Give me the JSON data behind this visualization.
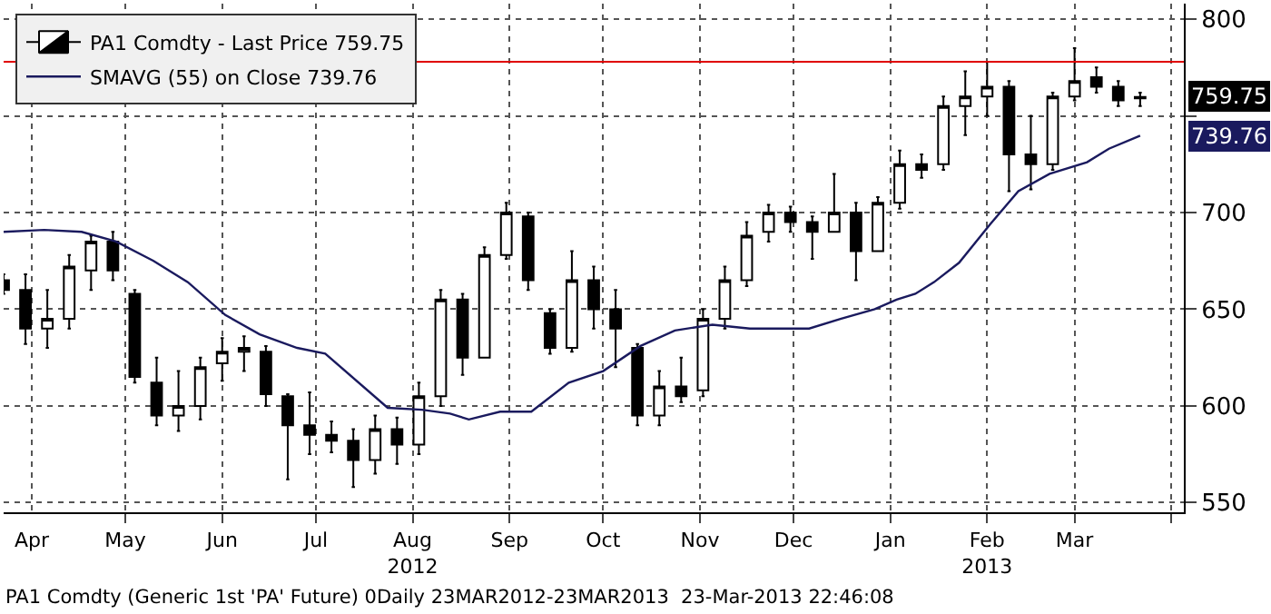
{
  "chart_data": {
    "type": "candlestick",
    "series": [
      {
        "name": "PA1 Comdty - Last Price 759.75",
        "color": "#000000",
        "x": [
          "2012-03-23",
          "2012-03-30",
          "2012-04-06",
          "2012-04-13",
          "2012-04-20",
          "2012-04-27",
          "2012-05-04",
          "2012-05-11",
          "2012-05-18",
          "2012-05-25",
          "2012-06-01",
          "2012-06-08",
          "2012-06-15",
          "2012-06-22",
          "2012-06-29",
          "2012-07-06",
          "2012-07-13",
          "2012-07-20",
          "2012-07-27",
          "2012-08-03",
          "2012-08-10",
          "2012-08-17",
          "2012-08-24",
          "2012-08-31",
          "2012-09-07",
          "2012-09-14",
          "2012-09-21",
          "2012-09-28",
          "2012-10-05",
          "2012-10-12",
          "2012-10-19",
          "2012-10-26",
          "2012-11-02",
          "2012-11-09",
          "2012-11-16",
          "2012-11-23",
          "2012-11-30",
          "2012-12-07",
          "2012-12-14",
          "2012-12-21",
          "2012-12-28",
          "2013-01-04",
          "2013-01-11",
          "2013-01-18",
          "2013-01-25",
          "2013-02-01",
          "2013-02-08",
          "2013-02-15",
          "2013-02-22",
          "2013-03-01",
          "2013-03-08",
          "2013-03-15",
          "2013-03-22"
        ],
        "ohlc": [
          [
            665,
            668,
            658,
            660
          ],
          [
            660,
            668,
            632,
            640
          ],
          [
            640,
            660,
            630,
            645
          ],
          [
            645,
            678,
            640,
            672
          ],
          [
            670,
            688,
            660,
            685
          ],
          [
            685,
            690,
            665,
            670
          ],
          [
            658,
            660,
            612,
            615
          ],
          [
            612,
            625,
            590,
            595
          ],
          [
            595,
            618,
            587,
            600
          ],
          [
            600,
            625,
            593,
            620
          ],
          [
            622,
            635,
            613,
            628
          ],
          [
            628,
            636,
            618,
            630
          ],
          [
            628,
            631,
            600,
            606
          ],
          [
            605,
            606,
            562,
            590
          ],
          [
            590,
            607,
            575,
            585
          ],
          [
            585,
            592,
            576,
            582
          ],
          [
            582,
            588,
            558,
            572
          ],
          [
            572,
            595,
            565,
            588
          ],
          [
            588,
            594,
            570,
            580
          ],
          [
            580,
            612,
            575,
            605
          ],
          [
            605,
            660,
            600,
            655
          ],
          [
            655,
            658,
            616,
            625
          ],
          [
            625,
            682,
            625,
            678
          ],
          [
            678,
            705,
            676,
            700
          ],
          [
            698,
            700,
            660,
            665
          ],
          [
            648,
            650,
            627,
            630
          ],
          [
            630,
            680,
            628,
            665
          ],
          [
            665,
            672,
            640,
            650
          ],
          [
            650,
            660,
            620,
            640
          ],
          [
            630,
            632,
            590,
            595
          ],
          [
            595,
            618,
            590,
            610
          ],
          [
            610,
            625,
            602,
            605
          ],
          [
            608,
            650,
            605,
            645
          ],
          [
            645,
            672,
            640,
            665
          ],
          [
            665,
            695,
            662,
            688
          ],
          [
            690,
            704,
            685,
            700
          ],
          [
            700,
            703,
            690,
            695
          ],
          [
            695,
            698,
            676,
            690
          ],
          [
            690,
            720,
            690,
            700
          ],
          [
            700,
            705,
            665,
            680
          ],
          [
            680,
            708,
            680,
            705
          ],
          [
            705,
            732,
            702,
            725
          ],
          [
            725,
            730,
            718,
            722
          ],
          [
            725,
            760,
            722,
            755
          ],
          [
            755,
            773,
            740,
            760
          ],
          [
            760,
            778,
            750,
            765
          ],
          [
            765,
            768,
            711,
            730
          ],
          [
            730,
            750,
            712,
            725
          ],
          [
            725,
            762,
            722,
            760
          ],
          [
            760,
            785,
            758,
            768
          ],
          [
            770,
            775,
            762,
            765
          ],
          [
            765,
            768,
            755,
            758
          ],
          [
            759,
            762,
            755,
            759.75
          ]
        ]
      },
      {
        "name": "SMAVG (55) on Close 739.76",
        "type": "line",
        "color": "#1a1a5e",
        "x": [
          "2012-03-23",
          "2012-04-05",
          "2012-04-17",
          "2012-04-28",
          "2012-05-10",
          "2012-05-21",
          "2012-06-02",
          "2012-06-13",
          "2012-06-25",
          "2012-07-04",
          "2012-07-24",
          "2012-08-04",
          "2012-08-13",
          "2012-08-19",
          "2012-08-29",
          "2012-09-08",
          "2012-09-20",
          "2012-10-01",
          "2012-10-13",
          "2012-10-24",
          "2012-11-05",
          "2012-11-17",
          "2012-12-06",
          "2012-12-16",
          "2012-12-27",
          "2013-01-03",
          "2013-01-09",
          "2013-01-15",
          "2013-01-23",
          "2013-02-02",
          "2013-02-11",
          "2013-02-21",
          "2013-03-05",
          "2013-03-12",
          "2013-03-22"
        ],
        "values": [
          690,
          691,
          690,
          685,
          675,
          664,
          647,
          637,
          630,
          627,
          599,
          598,
          596,
          593,
          597,
          597,
          612,
          618,
          631,
          639,
          642,
          640,
          640,
          645,
          650,
          655,
          658,
          664,
          674,
          694,
          711,
          720,
          726,
          733,
          739.76
        ]
      }
    ],
    "xlim": [
      "2012-03-23",
      "2013-04-05"
    ],
    "xticks": [
      {
        "value": "2012-04-01",
        "label": "Apr"
      },
      {
        "value": "2012-05-01",
        "label": "May"
      },
      {
        "value": "2012-06-01",
        "label": "Jun"
      },
      {
        "value": "2012-07-01",
        "label": "Jul"
      },
      {
        "value": "2012-08-01",
        "label": "Aug\n2012"
      },
      {
        "value": "2012-09-01",
        "label": "Sep"
      },
      {
        "value": "2012-10-01",
        "label": "Oct"
      },
      {
        "value": "2012-11-01",
        "label": "Nov"
      },
      {
        "value": "2012-12-01",
        "label": "Dec"
      },
      {
        "value": "2013-01-01",
        "label": "Jan"
      },
      {
        "value": "2013-02-01",
        "label": "Feb\n2013"
      },
      {
        "value": "2013-03-01",
        "label": "Mar"
      },
      {
        "value": "2013-04-01",
        "label": null
      }
    ],
    "ylim": [
      545,
      808
    ],
    "yticks": [
      550,
      600,
      650,
      700,
      {
        "value": 750,
        "label": null
      },
      800
    ],
    "grid": true,
    "legend": "top left",
    "ref_lines": [
      {
        "axis": "y",
        "value": 778,
        "color": "#e00000"
      }
    ],
    "annotations": [
      "759.75",
      "739.76",
      "PA1 Comdty (Generic 1st 'PA' Future) 0Daily 23MAR2012-23MAR2013  23-Mar-2013 22:46:08"
    ]
  }
}
